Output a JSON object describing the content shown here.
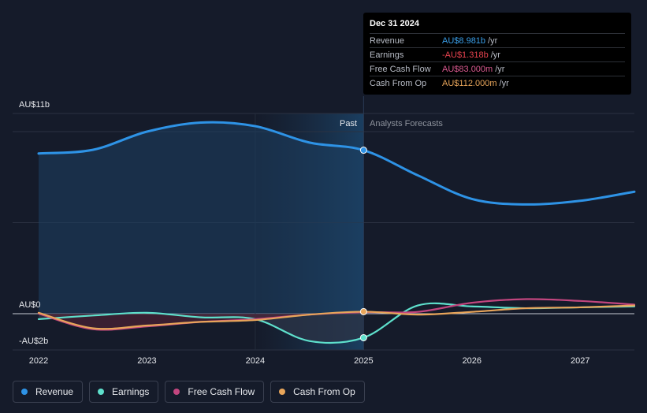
{
  "tooltip": {
    "date": "Dec 31 2024",
    "rows": [
      {
        "name": "Revenue",
        "value": "AU$8.981b",
        "unit": "/yr",
        "color": "#3a9ee8"
      },
      {
        "name": "Earnings",
        "value": "-AU$1.318b",
        "unit": "/yr",
        "color": "#e8434f"
      },
      {
        "name": "Free Cash Flow",
        "value": "AU$83.000m",
        "unit": "/yr",
        "color": "#d9598f"
      },
      {
        "name": "Cash From Op",
        "value": "AU$112.000m",
        "unit": "/yr",
        "color": "#e8a55a"
      }
    ]
  },
  "legend": [
    {
      "label": "Revenue",
      "color": "#2e93e6"
    },
    {
      "label": "Earnings",
      "color": "#5ee0cc"
    },
    {
      "label": "Free Cash Flow",
      "color": "#c2467f"
    },
    {
      "label": "Cash From Op",
      "color": "#e8a55a"
    }
  ],
  "chart_data": {
    "type": "line",
    "y_labels": [
      "AU$11b",
      "AU$0",
      "-AU$2b"
    ],
    "ylim": [
      -2,
      11
    ],
    "xlim": [
      2022,
      2027.5
    ],
    "x_ticks": [
      2022,
      2023,
      2024,
      2025,
      2026,
      2027
    ],
    "x_tick_labels": [
      "2022",
      "2023",
      "2024",
      "2025",
      "2026",
      "2027"
    ],
    "past_label": "Past",
    "forecast_label": "Analysts Forecasts",
    "divider_x": 2025,
    "series": [
      {
        "name": "Revenue",
        "color": "#2e93e6",
        "x": [
          2022,
          2022.5,
          2023,
          2023.5,
          2024,
          2024.5,
          2025,
          2025.5,
          2026,
          2026.5,
          2027,
          2027.5
        ],
        "y": [
          8.8,
          9.0,
          10.0,
          10.5,
          10.3,
          9.4,
          8.981,
          7.6,
          6.3,
          6.0,
          6.2,
          6.7
        ]
      },
      {
        "name": "Earnings",
        "color": "#5ee0cc",
        "x": [
          2022,
          2022.5,
          2023,
          2023.5,
          2024,
          2024.5,
          2025,
          2025.5,
          2026,
          2026.5,
          2027,
          2027.5
        ],
        "y": [
          -0.3,
          -0.1,
          0.05,
          -0.2,
          -0.3,
          -1.5,
          -1.318,
          0.45,
          0.4,
          0.3,
          0.35,
          0.4
        ]
      },
      {
        "name": "Free Cash Flow",
        "color": "#c2467f",
        "x": [
          2022,
          2022.5,
          2023,
          2023.5,
          2024,
          2024.5,
          2025,
          2025.5,
          2026,
          2026.5,
          2027,
          2027.5
        ],
        "y": [
          0.0,
          -0.85,
          -0.7,
          -0.45,
          -0.3,
          -0.05,
          0.083,
          0.1,
          0.6,
          0.8,
          0.7,
          0.5
        ]
      },
      {
        "name": "Cash From Op",
        "color": "#e8a55a",
        "x": [
          2022,
          2022.5,
          2023,
          2023.5,
          2024,
          2024.5,
          2025,
          2025.5,
          2026,
          2026.5,
          2027,
          2027.5
        ],
        "y": [
          0.05,
          -0.8,
          -0.65,
          -0.45,
          -0.35,
          -0.05,
          0.112,
          -0.05,
          0.1,
          0.3,
          0.35,
          0.45
        ]
      }
    ]
  }
}
